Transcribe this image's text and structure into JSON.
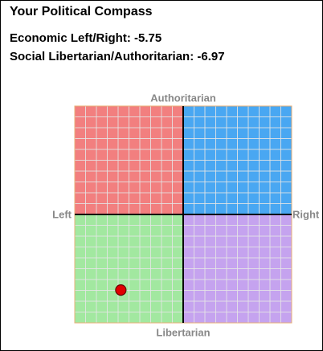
{
  "title": "Your Political Compass",
  "chart_data": {
    "type": "scatter",
    "x_label": "Economic Left/Right:",
    "y_label": "Social Libertarian/Authoritarian:",
    "x": [
      -5.75
    ],
    "values": [
      -6.97
    ],
    "xlim": [
      -10,
      10
    ],
    "ylim": [
      -10,
      10
    ],
    "grid": true,
    "point_color": "#e00000",
    "quadrant_colors": {
      "top_left": "#f27f7f",
      "top_right": "#49a7f2",
      "bottom_left": "#a2e8a0",
      "bottom_right": "#c5a3ef"
    },
    "axis_labels": {
      "top": "Authoritarian",
      "bottom": "Libertarian",
      "left": "Left",
      "right": "Right"
    }
  }
}
